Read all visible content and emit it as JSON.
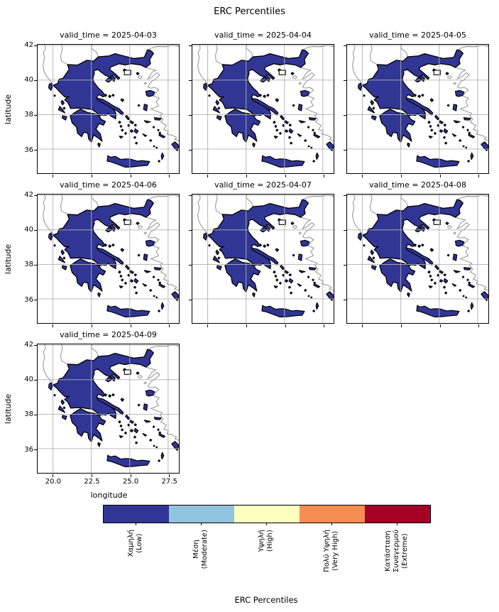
{
  "suptitle": "ERC Percentiles",
  "facets": [
    {
      "title": "valid_time = 2025-04-03"
    },
    {
      "title": "valid_time = 2025-04-04"
    },
    {
      "title": "valid_time = 2025-04-05"
    },
    {
      "title": "valid_time = 2025-04-06"
    },
    {
      "title": "valid_time = 2025-04-07"
    },
    {
      "title": "valid_time = 2025-04-08"
    },
    {
      "title": "valid_time = 2025-04-09"
    }
  ],
  "axes": {
    "xlabel": "longitude",
    "ylabel": "latitude",
    "xtick_labels": [
      "20.0",
      "22.5",
      "25.0",
      "27.5"
    ],
    "ytick_labels": [
      "42",
      "40",
      "38",
      "36"
    ]
  },
  "colorbar": {
    "label": "ERC Percentiles",
    "classes": [
      {
        "lines": [
          "Χαμηλή",
          "(Low)"
        ],
        "color": "#313695"
      },
      {
        "lines": [
          "Μέση",
          "(Moderate)"
        ],
        "color": "#91c4de"
      },
      {
        "lines": [
          "Υψηλή",
          "(High)"
        ],
        "color": "#fefebe"
      },
      {
        "lines": [
          "Πολύ Υψηλή",
          "(Very High)"
        ],
        "color": "#f68d52"
      },
      {
        "lines": [
          "Κατάσταση",
          "Συναγερμού",
          "(Extreme)"
        ],
        "color": "#a50026"
      }
    ]
  },
  "map": {
    "region": "Greece",
    "fill_color": "#313695",
    "coast_color": "#000000",
    "neighbor_border_color": "#9a9a9a",
    "grid_color": "#b0b0b0",
    "no_data_fill": "#ffffff"
  },
  "chart_data": {
    "type": "heatmap",
    "title": "ERC Percentiles",
    "facet_variable": "valid_time",
    "facets": [
      "2025-04-03",
      "2025-04-04",
      "2025-04-05",
      "2025-04-06",
      "2025-04-07",
      "2025-04-08",
      "2025-04-09"
    ],
    "region": "Greece",
    "xlabel": "longitude",
    "ylabel": "latitude",
    "xlim": [
      19.0,
      28.2
    ],
    "ylim": [
      34.6,
      42.05
    ],
    "xticks": [
      20.0,
      22.5,
      25.0,
      27.5
    ],
    "yticks": [
      36,
      38,
      40,
      42
    ],
    "grid": true,
    "legend_position": "bottom",
    "categories": [
      "Χαμηλή (Low)",
      "Μέση (Moderate)",
      "Υψηλή (High)",
      "Πολύ Υψηλή (Very High)",
      "Κατάσταση Συναγερμού (Extreme)"
    ],
    "colors": [
      "#313695",
      "#91c4de",
      "#fefebe",
      "#f68d52",
      "#a50026"
    ],
    "values_by_facet": {
      "2025-04-03": "Χαμηλή (Low)",
      "2025-04-04": "Χαμηλή (Low)",
      "2025-04-05": "Χαμηλή (Low)",
      "2025-04-06": "Χαμηλή (Low)",
      "2025-04-07": "Χαμηλή (Low)",
      "2025-04-08": "Χαμηλή (Low)",
      "2025-04-09": "Χαμηλή (Low)"
    },
    "note": "Entire mapped Greek territory is in the lowest class (Χαμηλή / Low) on every forecast day."
  }
}
